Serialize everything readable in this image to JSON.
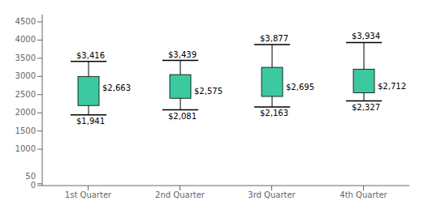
{
  "chart_data": {
    "type": "box",
    "categories": [
      "1st Quarter",
      "2nd Quarter",
      "3rd Quarter",
      "4th Quarter"
    ],
    "whisker_min": [
      1941,
      2081,
      2163,
      2327
    ],
    "box_bottom": [
      2200,
      2400,
      2450,
      2550
    ],
    "box_top": [
      3000,
      3050,
      3250,
      3200
    ],
    "whisker_max": [
      3416,
      3439,
      3877,
      3934
    ],
    "mean_values": [
      2663,
      2575,
      2695,
      2712
    ],
    "whisker_max_labels": [
      "$3,416",
      "$3,439",
      "$3,877",
      "$3,934"
    ],
    "whisker_min_labels": [
      "$1,941",
      "$2,081",
      "$2,163",
      "$2,327"
    ],
    "mean_value_labels": [
      "$2,663",
      "$2,575",
      "$2,695",
      "$2,712"
    ],
    "color": "#3CC9A0",
    "ylim": [
      0,
      4700
    ],
    "yticks": [
      0,
      50,
      1000,
      1500,
      2000,
      2500,
      3000,
      3500,
      4000,
      4500
    ],
    "grid": false
  }
}
